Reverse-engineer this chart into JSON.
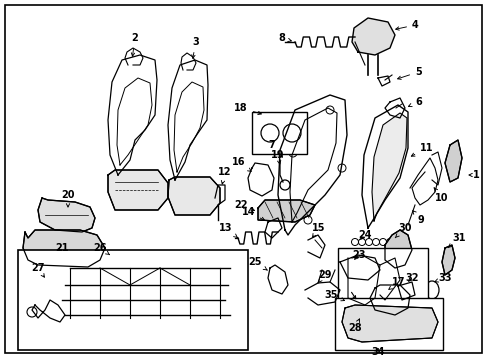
{
  "bg_color": "#ffffff",
  "line_color": "#000000",
  "text_color": "#000000",
  "figsize": [
    4.89,
    3.6
  ],
  "dpi": 100
}
